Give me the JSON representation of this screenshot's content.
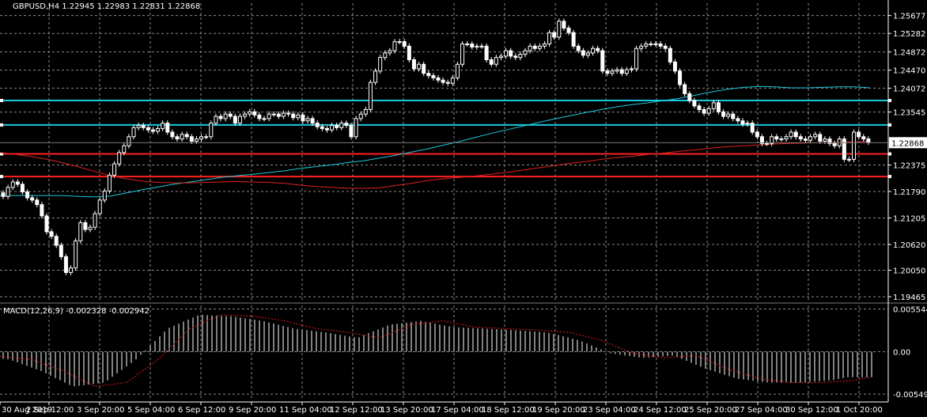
{
  "chart_data": [
    {
      "type": "candlestick",
      "header": "GBPUSD,H4  1.22945 1.22983 1.22831 1.22868",
      "symbol": "GBPUSD",
      "timeframe": "H4",
      "ohlc_last": {
        "open": 1.22945,
        "high": 1.22983,
        "low": 1.22831,
        "close": 1.22868
      },
      "price_axis_ticks": [
        "1.25677",
        "1.25282",
        "1.24872",
        "1.24470",
        "1.24072",
        "1.23545",
        "1.22375",
        "1.21790",
        "1.21205",
        "1.20620",
        "1.20050",
        "1.19465"
      ],
      "current_price_label": "1.22868",
      "ylim": [
        1.1936,
        1.2595
      ],
      "time_axis_labels": [
        "30 Aug 2019",
        "2 Sep 12:00",
        "3 Sep 20:00",
        "5 Sep 04:00",
        "6 Sep 12:00",
        "9 Sep 20:00",
        "11 Sep 04:00",
        "12 Sep 12:00",
        "13 Sep 20:00",
        "17 Sep 04:00",
        "18 Sep 12:00",
        "19 Sep 20:00",
        "23 Sep 04:00",
        "24 Sep 12:00",
        "25 Sep 20:00",
        "27 Sep 04:00",
        "30 Sep 12:00",
        "1 Oct 20:00"
      ],
      "horizontal_levels": [
        {
          "price": 1.238,
          "color": "#19c8dc"
        },
        {
          "price": 1.2326,
          "color": "#19c8dc"
        },
        {
          "price": 1.2262,
          "color": "#ff2020"
        },
        {
          "price": 1.2212,
          "color": "#ff2020"
        }
      ],
      "moving_averages": [
        {
          "color": "#19c8dc",
          "x": [
            0,
            20,
            40,
            60,
            80,
            100,
            120,
            140,
            160,
            180,
            200,
            220,
            240,
            260,
            280,
            300,
            320,
            340,
            360,
            380,
            400,
            420,
            440,
            460,
            480,
            500,
            520,
            540,
            560,
            580,
            600,
            620,
            640,
            660,
            680,
            700,
            720,
            740,
            760,
            780,
            800,
            820,
            840,
            860,
            880,
            900,
            920,
            940,
            960,
            980,
            1000,
            1020,
            1040,
            1060,
            1080,
            1100
          ],
          "values": [
            1.217,
            1.217,
            1.217,
            1.217,
            1.217,
            1.2168,
            1.2167,
            1.2169,
            1.2176,
            1.2183,
            1.2189,
            1.2195,
            1.22,
            1.2205,
            1.221,
            1.2214,
            1.2217,
            1.2221,
            1.2225,
            1.223,
            1.2234,
            1.2238,
            1.2243,
            1.2247,
            1.2253,
            1.2259,
            1.2266,
            1.2273,
            1.2281,
            1.2289,
            1.2298,
            1.2307,
            1.2315,
            1.2323,
            1.2331,
            1.2339,
            1.2346,
            1.2353,
            1.236,
            1.2366,
            1.2371,
            1.2375,
            1.238,
            1.2385,
            1.2392,
            1.2399,
            1.2405,
            1.2409,
            1.2411,
            1.241,
            1.2408,
            1.2408,
            1.2409,
            1.241,
            1.241,
            1.2408
          ]
        },
        {
          "color": "#e02020",
          "x": [
            0,
            20,
            40,
            60,
            80,
            100,
            120,
            140,
            160,
            180,
            200,
            220,
            240,
            260,
            280,
            300,
            320,
            340,
            360,
            380,
            400,
            420,
            440,
            460,
            480,
            500,
            520,
            540,
            560,
            580,
            600,
            620,
            640,
            660,
            680,
            700,
            720,
            740,
            760,
            780,
            800,
            820,
            840,
            860,
            880,
            900,
            920,
            940,
            960,
            980,
            1000,
            1020,
            1040,
            1060,
            1080,
            1100
          ],
          "values": [
            1.2265,
            1.2261,
            1.2256,
            1.225,
            1.2242,
            1.2233,
            1.2223,
            1.2214,
            1.2207,
            1.2202,
            1.2199,
            1.2198,
            1.2198,
            1.2199,
            1.22,
            1.2201,
            1.22,
            1.2199,
            1.2197,
            1.2193,
            1.219,
            1.2188,
            1.2186,
            1.2186,
            1.2187,
            1.2192,
            1.2197,
            1.2203,
            1.2207,
            1.221,
            1.2213,
            1.2217,
            1.2221,
            1.2226,
            1.2231,
            1.2236,
            1.2241,
            1.2245,
            1.225,
            1.2254,
            1.2257,
            1.2261,
            1.2264,
            1.2268,
            1.2271,
            1.2275,
            1.2278,
            1.228,
            1.2282,
            1.2284,
            1.2285,
            1.2286,
            1.2287,
            1.2288,
            1.2289,
            1.229
          ]
        }
      ],
      "candles_close": [
        1.2168,
        1.2188,
        1.22,
        1.2195,
        1.2178,
        1.2165,
        1.216,
        1.215,
        1.2125,
        1.209,
        1.208,
        1.206,
        1.2035,
        1.2,
        1.201,
        1.207,
        1.211,
        1.2095,
        1.21,
        1.213,
        1.216,
        1.218,
        1.2215,
        1.224,
        1.2265,
        1.228,
        1.23,
        1.232,
        1.2325,
        1.232,
        1.2315,
        1.2312,
        1.2318,
        1.233,
        1.231,
        1.23,
        1.2295,
        1.2305,
        1.23,
        1.229,
        1.2295,
        1.23,
        1.23,
        1.233,
        1.2345,
        1.234,
        1.235,
        1.2345,
        1.233,
        1.2345,
        1.235,
        1.2355,
        1.2348,
        1.234,
        1.234,
        1.235,
        1.235,
        1.2345,
        1.2352,
        1.235,
        1.2342,
        1.2348,
        1.2335,
        1.234,
        1.233,
        1.2322,
        1.2318,
        1.2315,
        1.2325,
        1.232,
        1.233,
        1.2325,
        1.23,
        1.234,
        1.235,
        1.236,
        1.242,
        1.2445,
        1.2475,
        1.2485,
        1.249,
        1.251,
        1.251,
        1.25,
        1.247,
        1.245,
        1.246,
        1.244,
        1.2435,
        1.243,
        1.2425,
        1.242,
        1.2418,
        1.243,
        1.246,
        1.2505,
        1.2505,
        1.2498,
        1.25,
        1.25,
        1.247,
        1.246,
        1.2475,
        1.2478,
        1.249,
        1.2478,
        1.2475,
        1.2482,
        1.249,
        1.25,
        1.2495,
        1.25,
        1.2505,
        1.253,
        1.252,
        1.2555,
        1.254,
        1.253,
        1.25,
        1.249,
        1.248,
        1.2485,
        1.2495,
        1.249,
        1.2445,
        1.244,
        1.2445,
        1.2448,
        1.244,
        1.2448,
        1.245,
        1.2495,
        1.25,
        1.2505,
        1.2505,
        1.2505,
        1.25,
        1.2495,
        1.2465,
        1.2445,
        1.2415,
        1.2395,
        1.238,
        1.2368,
        1.236,
        1.2352,
        1.2362,
        1.2375,
        1.2355,
        1.2345,
        1.235,
        1.234,
        1.2335,
        1.2328,
        1.233,
        1.231,
        1.23,
        1.2285,
        1.2285,
        1.23,
        1.2295,
        1.2295,
        1.23,
        1.231,
        1.23,
        1.2295,
        1.2292,
        1.23,
        1.2305,
        1.229,
        1.2295,
        1.2285,
        1.228,
        1.2295,
        1.225,
        1.225,
        1.231,
        1.23,
        1.2295,
        1.2288
      ],
      "subplot": {
        "label": "MACD(12,26,9) -0.002328 -0.002942",
        "axis_ticks": [
          "0.005544",
          "0.00",
          "-0.005493"
        ],
        "ylim": [
          -0.0062,
          0.006
        ],
        "histogram_color": "#ffffff",
        "signal_color": "#e02020",
        "signal_x": [
          0,
          40,
          80,
          120,
          160,
          200,
          240,
          280,
          320,
          360,
          400,
          440,
          480,
          520,
          560,
          600,
          640,
          680,
          720,
          760,
          800,
          840,
          880,
          920,
          960,
          1000,
          1040,
          1080,
          1100
        ],
        "signal": [
          -0.0006,
          -0.001,
          -0.0025,
          -0.0045,
          -0.004,
          -0.001,
          0.003,
          0.0048,
          0.0046,
          0.004,
          0.003,
          0.0025,
          0.0018,
          0.0035,
          0.004,
          0.0032,
          0.003,
          0.0028,
          0.0025,
          0.0015,
          -0.0002,
          -0.0008,
          -0.0005,
          -0.0022,
          -0.0035,
          -0.004,
          -0.004,
          -0.0037,
          -0.0033
        ]
      }
    }
  ]
}
